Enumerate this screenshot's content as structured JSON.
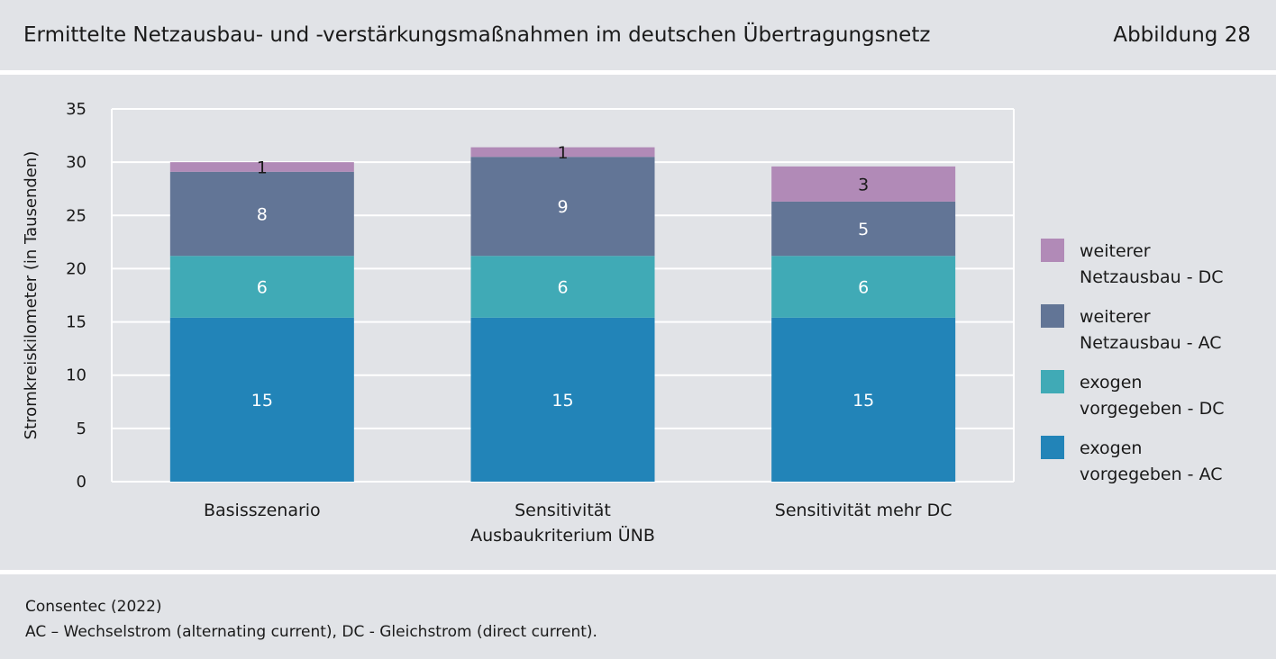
{
  "header": {
    "title": "Ermittelte Netzausbau- und -verstärkungsmaßnahmen im deutschen Übertragungsnetz",
    "figure_label": "Abbildung 28"
  },
  "footer": {
    "source": "Consentec (2022)",
    "note": "AC – Wechselstrom (alternating current), DC - Gleichstrom (direct current)."
  },
  "chart_data": {
    "type": "bar",
    "stacked": true,
    "ylabel": "Stromkreiskilometer (in Tausenden)",
    "xlabel": "",
    "ylim": [
      0,
      35
    ],
    "yticks": [
      0,
      5,
      10,
      15,
      20,
      25,
      30,
      35
    ],
    "grid": true,
    "legend_position": "right",
    "categories": [
      [
        "Basisszenario"
      ],
      [
        "Sensitivität",
        "Ausbaukriterium ÜNB"
      ],
      [
        "Sensitivität mehr DC"
      ]
    ],
    "series": [
      {
        "name": "exogen vorgegeben - AC",
        "legend_lines": [
          "exogen",
          "vorgegeben - AC"
        ],
        "color": "#2284b8",
        "label_color": "#ffffff",
        "values": [
          15.4,
          15.4,
          15.4
        ],
        "labels": [
          "15",
          "15",
          "15"
        ]
      },
      {
        "name": "exogen vorgegeben - DC",
        "legend_lines": [
          "exogen",
          "vorgegeben - DC"
        ],
        "color": "#40aab6",
        "label_color": "#ffffff",
        "values": [
          5.8,
          5.8,
          5.8
        ],
        "labels": [
          "6",
          "6",
          "6"
        ]
      },
      {
        "name": "weiterer Netzausbau - AC",
        "legend_lines": [
          "weiterer",
          "Netzausbau - AC"
        ],
        "color": "#627596",
        "label_color": "#ffffff",
        "values": [
          7.9,
          9.3,
          5.1
        ],
        "labels": [
          "8",
          "9",
          "5"
        ]
      },
      {
        "name": "weiterer Netzausbau - DC",
        "legend_lines": [
          "weiterer",
          "Netzausbau - DC"
        ],
        "color": "#b18ab7",
        "label_color": "#1a1a1a",
        "values": [
          0.9,
          0.9,
          3.3
        ],
        "labels": [
          "1",
          "1",
          "3"
        ]
      }
    ]
  }
}
